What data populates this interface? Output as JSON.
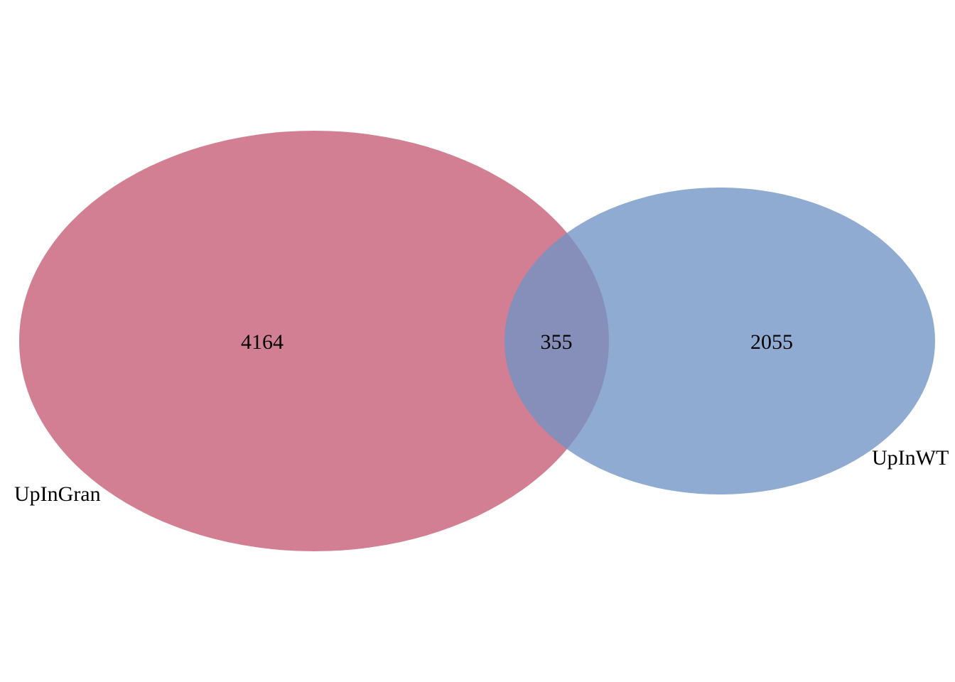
{
  "venn": {
    "sets": [
      {
        "name": "UpInGran",
        "color": "#C75B74",
        "opacity": 0.78
      },
      {
        "name": "UpInWT",
        "color": "#6F94C4",
        "opacity": 0.78
      }
    ],
    "regions": {
      "only_set_a": "4164",
      "intersection": "355",
      "only_set_b": "2055"
    }
  }
}
